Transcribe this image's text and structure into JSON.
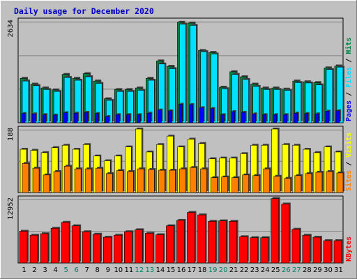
{
  "chart_data": {
    "type": "bar",
    "title": "Daily usage for December 2020",
    "categories": [
      "1",
      "2",
      "3",
      "4",
      "5",
      "6",
      "7",
      "8",
      "9",
      "10",
      "11",
      "12",
      "13",
      "14",
      "15",
      "16",
      "17",
      "18",
      "19",
      "20",
      "21",
      "22",
      "23",
      "24",
      "25",
      "26",
      "27",
      "28",
      "29",
      "30",
      "31"
    ],
    "weekend_days": [
      "5",
      "6",
      "12",
      "13",
      "19",
      "20",
      "26",
      "27"
    ],
    "panels": [
      {
        "id": "hits-files-pages",
        "max_label": "2634",
        "ylim": [
          0,
          2634
        ],
        "legend": [
          "Pages",
          "Files",
          "Hits"
        ],
        "series": [
          {
            "name": "Hits",
            "color": "#008040",
            "values": [
              1150,
              1000,
              900,
              850,
              1250,
              1150,
              1270,
              1080,
              620,
              860,
              860,
              900,
              1150,
              1600,
              1460,
              2600,
              2580,
              1870,
              1820,
              920,
              1320,
              1190,
              1000,
              900,
              900,
              870,
              1080,
              1060,
              1040,
              1420,
              1470
            ]
          },
          {
            "name": "Files",
            "color": "#00e0ff",
            "values": [
              1080,
              960,
              860,
              810,
              1170,
              1100,
              1190,
              1020,
              580,
              810,
              810,
              840,
              1100,
              1520,
              1400,
              2550,
              2520,
              1840,
              1780,
              880,
              1250,
              1120,
              940,
              860,
              860,
              840,
              1040,
              1030,
              980,
              1380,
              1440
            ]
          },
          {
            "name": "Pages",
            "color": "#0000ff",
            "values": [
              240,
              230,
              210,
              200,
              260,
              250,
              270,
              240,
              160,
              210,
              210,
              210,
              250,
              330,
              310,
              480,
              470,
              390,
              370,
              210,
              290,
              270,
              230,
              210,
              210,
              210,
              250,
              240,
              230,
              300,
              310
            ]
          }
        ]
      },
      {
        "id": "visits-sites",
        "max_label": "188",
        "ylim": [
          0,
          188
        ],
        "legend": [
          "Sites",
          "Visits"
        ],
        "series": [
          {
            "name": "Visits",
            "color": "#ffff00",
            "values": [
              128,
              125,
              118,
              133,
              140,
              128,
              142,
              108,
              94,
              108,
              135,
              188,
              120,
              142,
              167,
              135,
              158,
              145,
              100,
              102,
              102,
              115,
              140,
              140,
              188,
              142,
              140,
              128,
              118,
              135,
              120
            ]
          },
          {
            "name": "Sites",
            "color": "#ff8000",
            "values": [
              86,
              72,
              52,
              62,
              78,
              70,
              70,
              72,
              56,
              65,
              62,
              70,
              68,
              66,
              66,
              70,
              74,
              70,
              44,
              46,
              44,
              52,
              50,
              70,
              48,
              42,
              50,
              56,
              60,
              62,
              58
            ]
          }
        ]
      },
      {
        "id": "kbytes",
        "max_label": "12952",
        "ylim": [
          0,
          12952
        ],
        "legend": [
          "KBytes"
        ],
        "series": [
          {
            "name": "KBytes",
            "color": "#ff0000",
            "values": [
              6400,
              5600,
              5900,
              7000,
              8200,
              7500,
              6300,
              5800,
              5200,
              5600,
              6300,
              6700,
              6000,
              5700,
              7500,
              8600,
              10200,
              9700,
              8400,
              8500,
              8400,
              5300,
              5100,
              5100,
              13000,
              11900,
              6800,
              5600,
              5200,
              4500,
              4500
            ]
          }
        ]
      }
    ]
  },
  "colors": {
    "background": "#c0c0c0",
    "panel_bg": "#c0c0c0",
    "gridline": "#808080",
    "title": "#0000c0",
    "weekend_label": "#00806a",
    "weekday_label": "#000000",
    "legend_sep": "#000000"
  }
}
